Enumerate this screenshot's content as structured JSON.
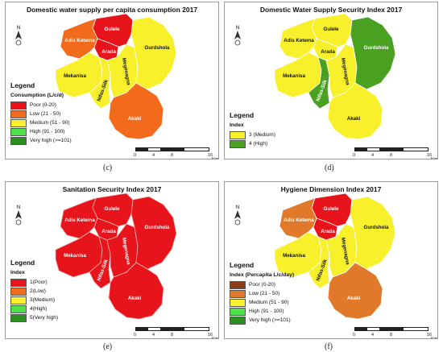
{
  "panels": {
    "c": {
      "title": "Domestic water supply per capita consumption 2017",
      "legend_title": "Legend",
      "legend_heading": "Consumption (L/c/d)",
      "legend_items": [
        {
          "label": "Poor (0-20)",
          "color": "#e8141b"
        },
        {
          "label": "Low (21 - 50)",
          "color": "#f26a1b"
        },
        {
          "label": "Medium (51 - 90)",
          "color": "#f7f02a"
        },
        {
          "label": "High (91 - 100)",
          "color": "#4fe04a"
        },
        {
          "label": "Very high (>=101)",
          "color": "#2a8f1f"
        }
      ],
      "district_colors": {
        "gulele": "#e8141b",
        "adis_ketema": "#f26a1b",
        "arada": "#e8141b",
        "mekanisa": "#f7f02a",
        "nifas_silk": "#f7f02a",
        "gurdshola": "#f7f02a",
        "akaki": "#f26a1b",
        "megenagna": "#f7f02a"
      },
      "caption": "(c)"
    },
    "d": {
      "title": "Domestic Water Supply Security Index 2017",
      "legend_title": "Legend",
      "legend_heading": "Index",
      "legend_items": [
        {
          "label": "3 (Medium)",
          "color": "#f7f02a"
        },
        {
          "label": "4 (High)",
          "color": "#4aa020"
        }
      ],
      "district_colors": {
        "gulele": "#f7f02a",
        "adis_ketema": "#f7f02a",
        "arada": "#f7f02a",
        "mekanisa": "#f7f02a",
        "nifas_silk": "#4aa020",
        "gurdshola": "#4aa020",
        "akaki": "#f7f02a",
        "megenagna": "#f7f02a"
      },
      "caption": "(d)"
    },
    "e": {
      "title": "Sanitation Security Index 2017",
      "legend_title": "Legend",
      "legend_heading": "Index",
      "legend_items": [
        {
          "label": "1(Poor)",
          "color": "#e8141b"
        },
        {
          "label": "2(Low)",
          "color": "#f26a1b"
        },
        {
          "label": "3(Medium)",
          "color": "#f7f02a"
        },
        {
          "label": "4(High)",
          "color": "#4fe04a"
        },
        {
          "label": "5(Very high)",
          "color": "#2a8f1f"
        }
      ],
      "district_colors": {
        "gulele": "#e8141b",
        "adis_ketema": "#e8141b",
        "arada": "#e8141b",
        "mekanisa": "#e8141b",
        "nifas_silk": "#e8141b",
        "gurdshola": "#e8141b",
        "akaki": "#e8141b",
        "megenagna": "#e8141b"
      },
      "caption": "(e)"
    },
    "f": {
      "title": "Hygiene Dimension Index 2017",
      "legend_title": "Legend",
      "legend_heading": "Index (Percapita L/c/day)",
      "legend_items": [
        {
          "label": "Poor (0-20)",
          "color": "#8a3b1a"
        },
        {
          "label": "Low (21 - 50)",
          "color": "#e07a2a"
        },
        {
          "label": "Medium (51 - 90)",
          "color": "#f7f02a"
        },
        {
          "label": "High (91 - 100)",
          "color": "#4fe04a"
        },
        {
          "label": "Very high (>=101)",
          "color": "#2a8f1f"
        }
      ],
      "district_colors": {
        "gulele": "#e8141b",
        "adis_ketema": "#e07a2a",
        "arada": "#e8141b",
        "mekanisa": "#f7f02a",
        "nifas_silk": "#f7f02a",
        "gurdshola": "#f7f02a",
        "akaki": "#e07a2a",
        "megenagna": "#f7f02a"
      },
      "caption": "(f)"
    }
  },
  "district_names": {
    "gulele": "Gulele",
    "adis_ketema": "Adis Ketema",
    "arada": "Arada",
    "mekanisa": "Mekanisa",
    "nifas_silk": "Nifas-Silk",
    "gurdshola": "Gurdshola",
    "akaki": "Akaki",
    "megenagna": "Megenagna"
  },
  "scale": {
    "ticks": [
      "0",
      "4",
      "8",
      "16"
    ],
    "unit": "Km"
  },
  "north_label": "N"
}
